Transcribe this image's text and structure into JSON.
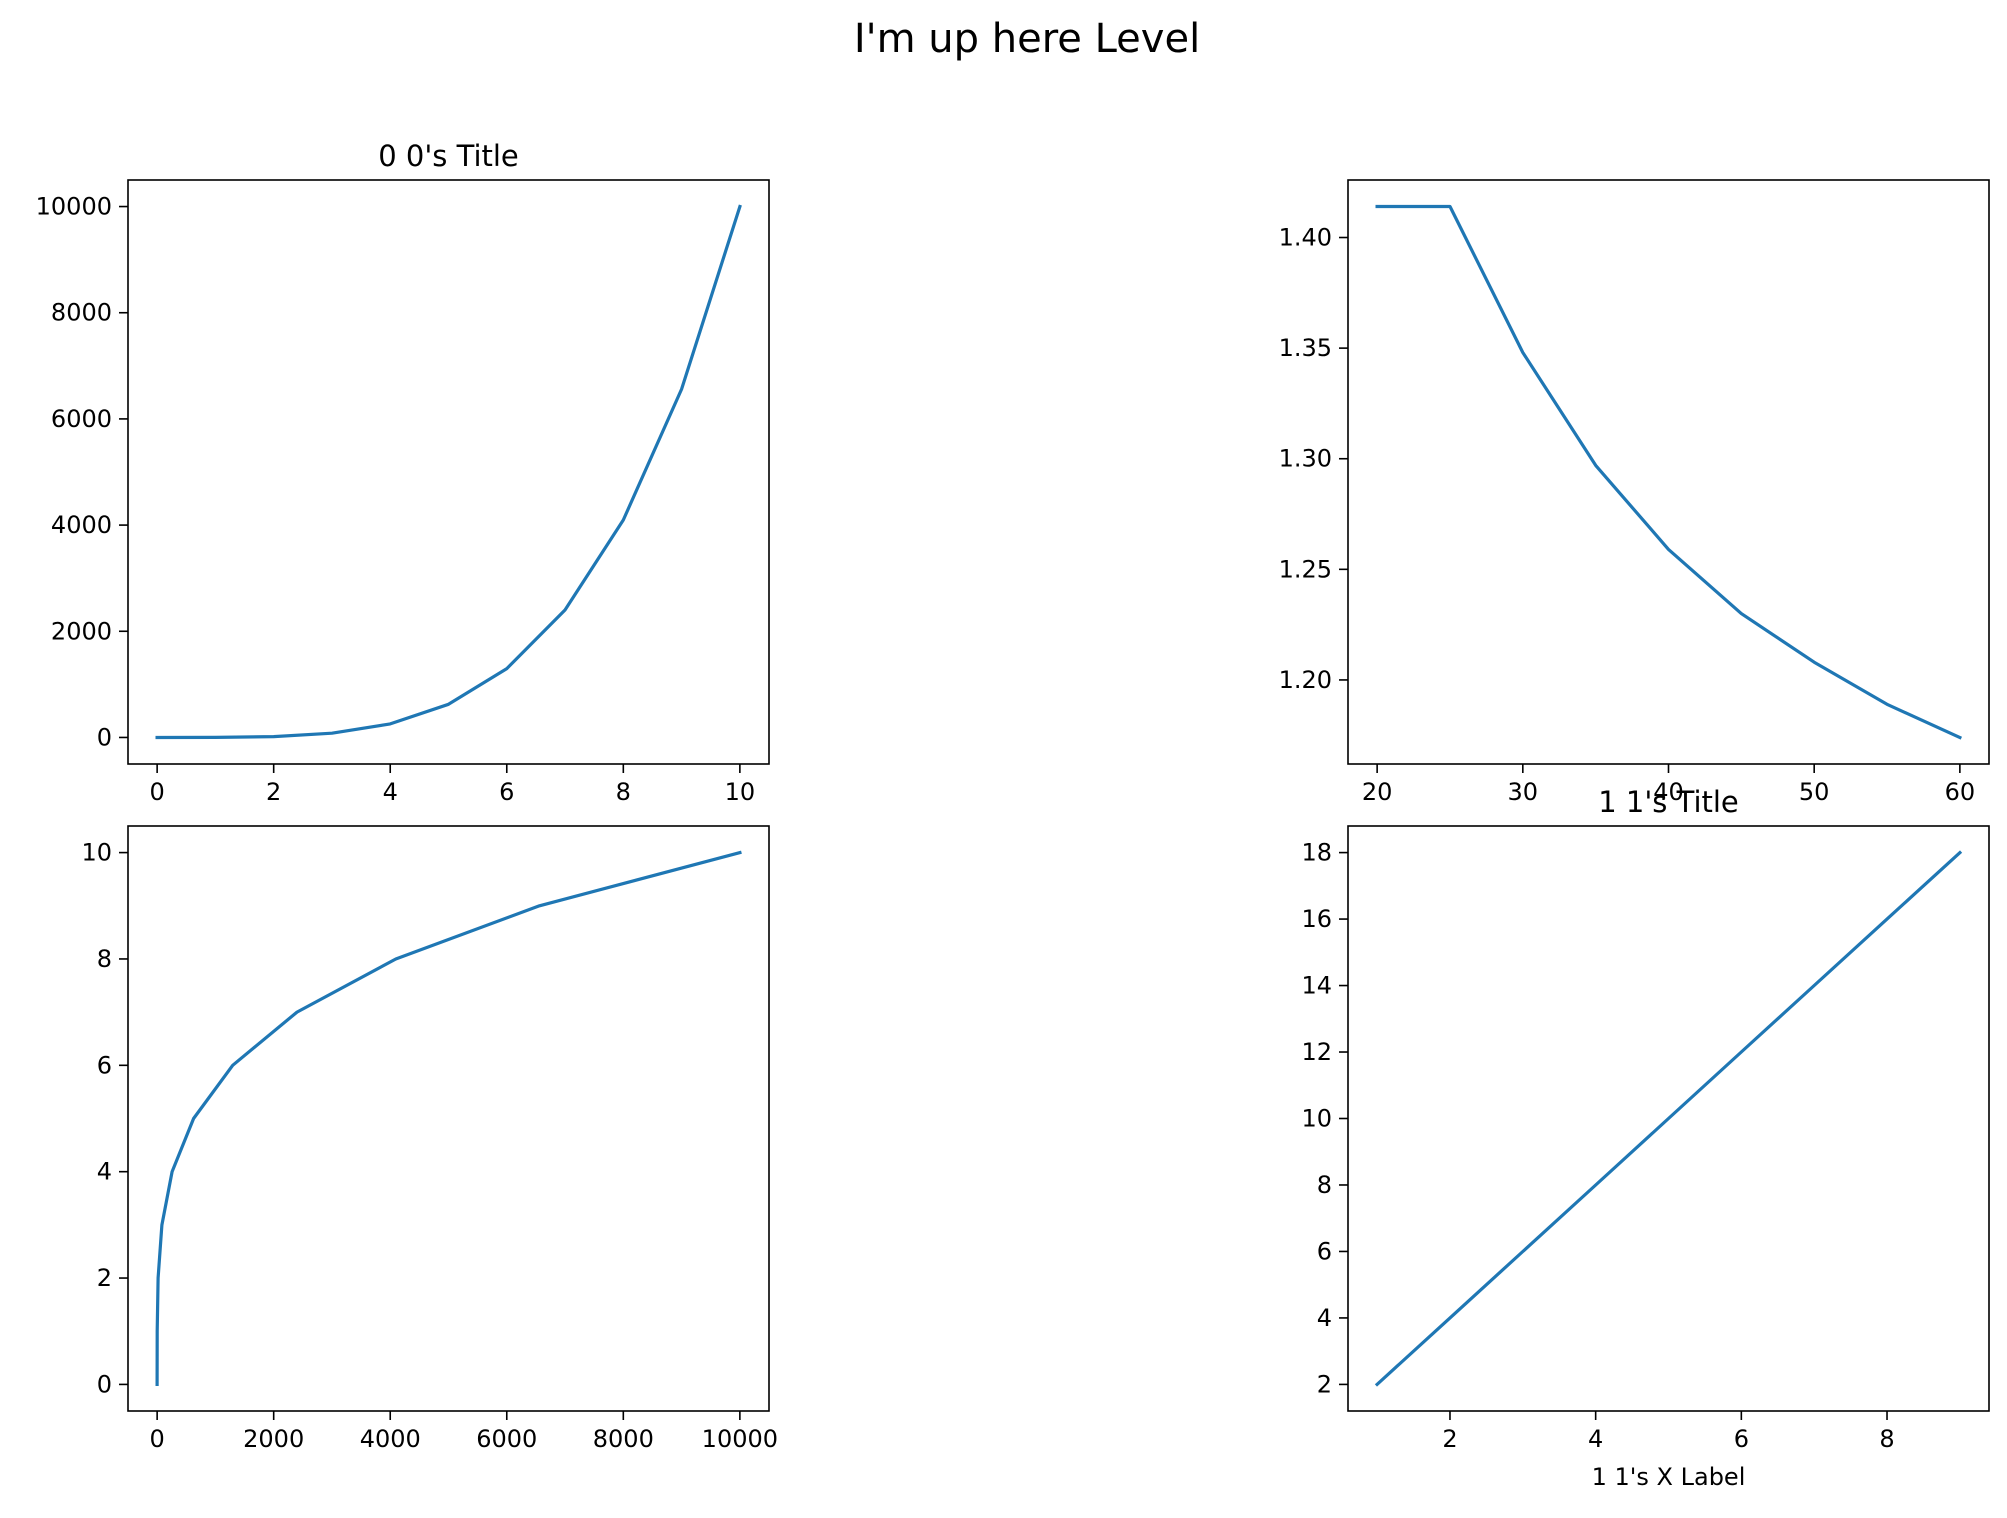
{
  "suptitle": "I'm up here Level",
  "colors": {
    "line": "#1f77b4"
  },
  "chart_data": [
    {
      "type": "line",
      "title": "0 0's Title",
      "xlabel": "",
      "ylabel": "",
      "x": [
        0,
        1,
        2,
        3,
        4,
        5,
        6,
        7,
        8,
        9,
        10
      ],
      "series": [
        {
          "values": [
            0,
            1,
            16,
            81,
            256,
            625,
            1296,
            2401,
            4096,
            6561,
            10000
          ]
        }
      ],
      "xlim": [
        -0.5,
        10.5
      ],
      "ylim": [
        -500,
        10500
      ],
      "xticks": [
        0,
        2,
        4,
        6,
        8,
        10
      ],
      "yticks": [
        0,
        2000,
        4000,
        6000,
        8000,
        10000
      ],
      "grid": false
    },
    {
      "type": "line",
      "title": "",
      "xlabel": "",
      "ylabel": "",
      "x": [
        20,
        25,
        30,
        35,
        40,
        45,
        50,
        55,
        60
      ],
      "series": [
        {
          "values": [
            1.414,
            1.414,
            1.348,
            1.297,
            1.259,
            1.23,
            1.208,
            1.189,
            1.174
          ]
        }
      ],
      "xlim": [
        18,
        62
      ],
      "ylim": [
        1.162,
        1.426
      ],
      "xticks": [
        20,
        30,
        40,
        50,
        60
      ],
      "yticks": [
        1.2,
        1.25,
        1.3,
        1.35,
        1.4
      ],
      "ytick_decimals": 2,
      "grid": false
    },
    {
      "type": "line",
      "title": "",
      "xlabel": "",
      "ylabel": "",
      "x": [
        0,
        1,
        16,
        81,
        256,
        625,
        1296,
        2401,
        4096,
        6561,
        10000
      ],
      "series": [
        {
          "values": [
            0,
            1,
            2,
            3,
            4,
            5,
            6,
            7,
            8,
            9,
            10
          ]
        }
      ],
      "xlim": [
        -500,
        10500
      ],
      "ylim": [
        -0.5,
        10.5
      ],
      "xticks": [
        0,
        2000,
        4000,
        6000,
        8000,
        10000
      ],
      "yticks": [
        0,
        2,
        4,
        6,
        8,
        10
      ],
      "grid": false
    },
    {
      "type": "line",
      "title": "1 1's Title",
      "xlabel": "1 1's X Label",
      "ylabel": "",
      "x": [
        1,
        2,
        3,
        4,
        5,
        6,
        7,
        8,
        9
      ],
      "series": [
        {
          "values": [
            2,
            4,
            6,
            8,
            10,
            12,
            14,
            16,
            18
          ]
        }
      ],
      "xlim": [
        0.6,
        9.4
      ],
      "ylim": [
        1.2,
        18.8
      ],
      "xticks": [
        2,
        4,
        6,
        8
      ],
      "yticks": [
        2,
        4,
        6,
        8,
        10,
        12,
        14,
        16,
        18
      ],
      "grid": false
    }
  ]
}
